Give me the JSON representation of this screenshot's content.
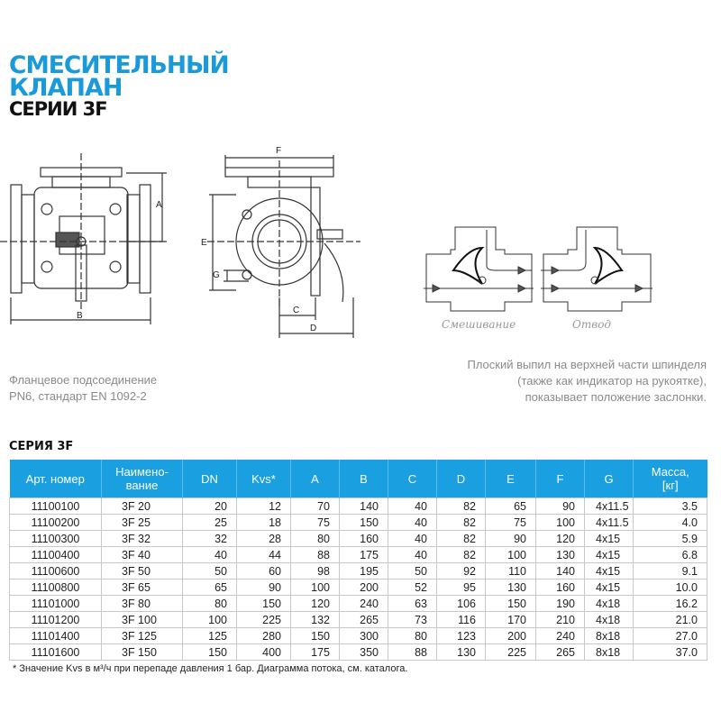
{
  "title": {
    "line1": "СМЕСИТЕЛЬНЫЙ",
    "line2": "КЛАПАН",
    "line3": "СЕРИИ 3F"
  },
  "drawing": {
    "dims": {
      "A": "A",
      "B": "B",
      "C": "C",
      "D": "D",
      "E": "E",
      "F": "F",
      "G": "G"
    },
    "mixing_label": "Смешивание",
    "diverting_label": "Отвод"
  },
  "captions": {
    "left": [
      "Фланцевое подсоединение",
      "PN6, стандарт EN 1092-2"
    ],
    "right": [
      "Плоский выпил на верхней части шпинделя",
      "(также как индикатор на рукоятке),",
      "показывает положение заслонки."
    ]
  },
  "table": {
    "section_title": "СЕРИЯ 3F",
    "header_color": "#1a9fe0",
    "headers": [
      "Арт. номер",
      "Наимено-\nвание",
      "DN",
      "Kvs*",
      "A",
      "B",
      "C",
      "D",
      "E",
      "F",
      "G",
      "Масса,\n[кг]"
    ],
    "rows": [
      [
        "11100100",
        "3F 20",
        "20",
        "12",
        "70",
        "140",
        "40",
        "82",
        "65",
        "90",
        "4x11.5",
        "3.5"
      ],
      [
        "11100200",
        "3F 25",
        "25",
        "18",
        "75",
        "150",
        "40",
        "82",
        "75",
        "100",
        "4x11.5",
        "4.0"
      ],
      [
        "11100300",
        "3F 32",
        "32",
        "28",
        "80",
        "160",
        "40",
        "82",
        "90",
        "120",
        "4x15",
        "5.9"
      ],
      [
        "11100400",
        "3F 40",
        "40",
        "44",
        "88",
        "175",
        "40",
        "82",
        "100",
        "130",
        "4x15",
        "6.8"
      ],
      [
        "11100600",
        "3F 50",
        "50",
        "60",
        "98",
        "195",
        "50",
        "92",
        "110",
        "140",
        "4x15",
        "9.1"
      ],
      [
        "11100800",
        "3F 65",
        "65",
        "90",
        "100",
        "200",
        "52",
        "95",
        "130",
        "160",
        "4x15",
        "10.0"
      ],
      [
        "11101000",
        "3F 80",
        "80",
        "150",
        "120",
        "240",
        "63",
        "106",
        "150",
        "190",
        "4x18",
        "16.2"
      ],
      [
        "11101200",
        "3F 100",
        "100",
        "225",
        "132",
        "265",
        "73",
        "116",
        "170",
        "210",
        "4x18",
        "21.0"
      ],
      [
        "11101400",
        "3F 125",
        "125",
        "280",
        "150",
        "300",
        "80",
        "123",
        "200",
        "240",
        "8x18",
        "27.0"
      ],
      [
        "11101600",
        "3F 150",
        "150",
        "400",
        "175",
        "350",
        "88",
        "130",
        "225",
        "265",
        "8x18",
        "37.0"
      ]
    ],
    "footnote": "* Значение Kvs в м³/ч при перепаде давления 1 бар. Диаграмма потока, см. каталога."
  },
  "colors": {
    "title_blue": "#1b9ad9",
    "caption_gray": "#8a8a8a"
  }
}
